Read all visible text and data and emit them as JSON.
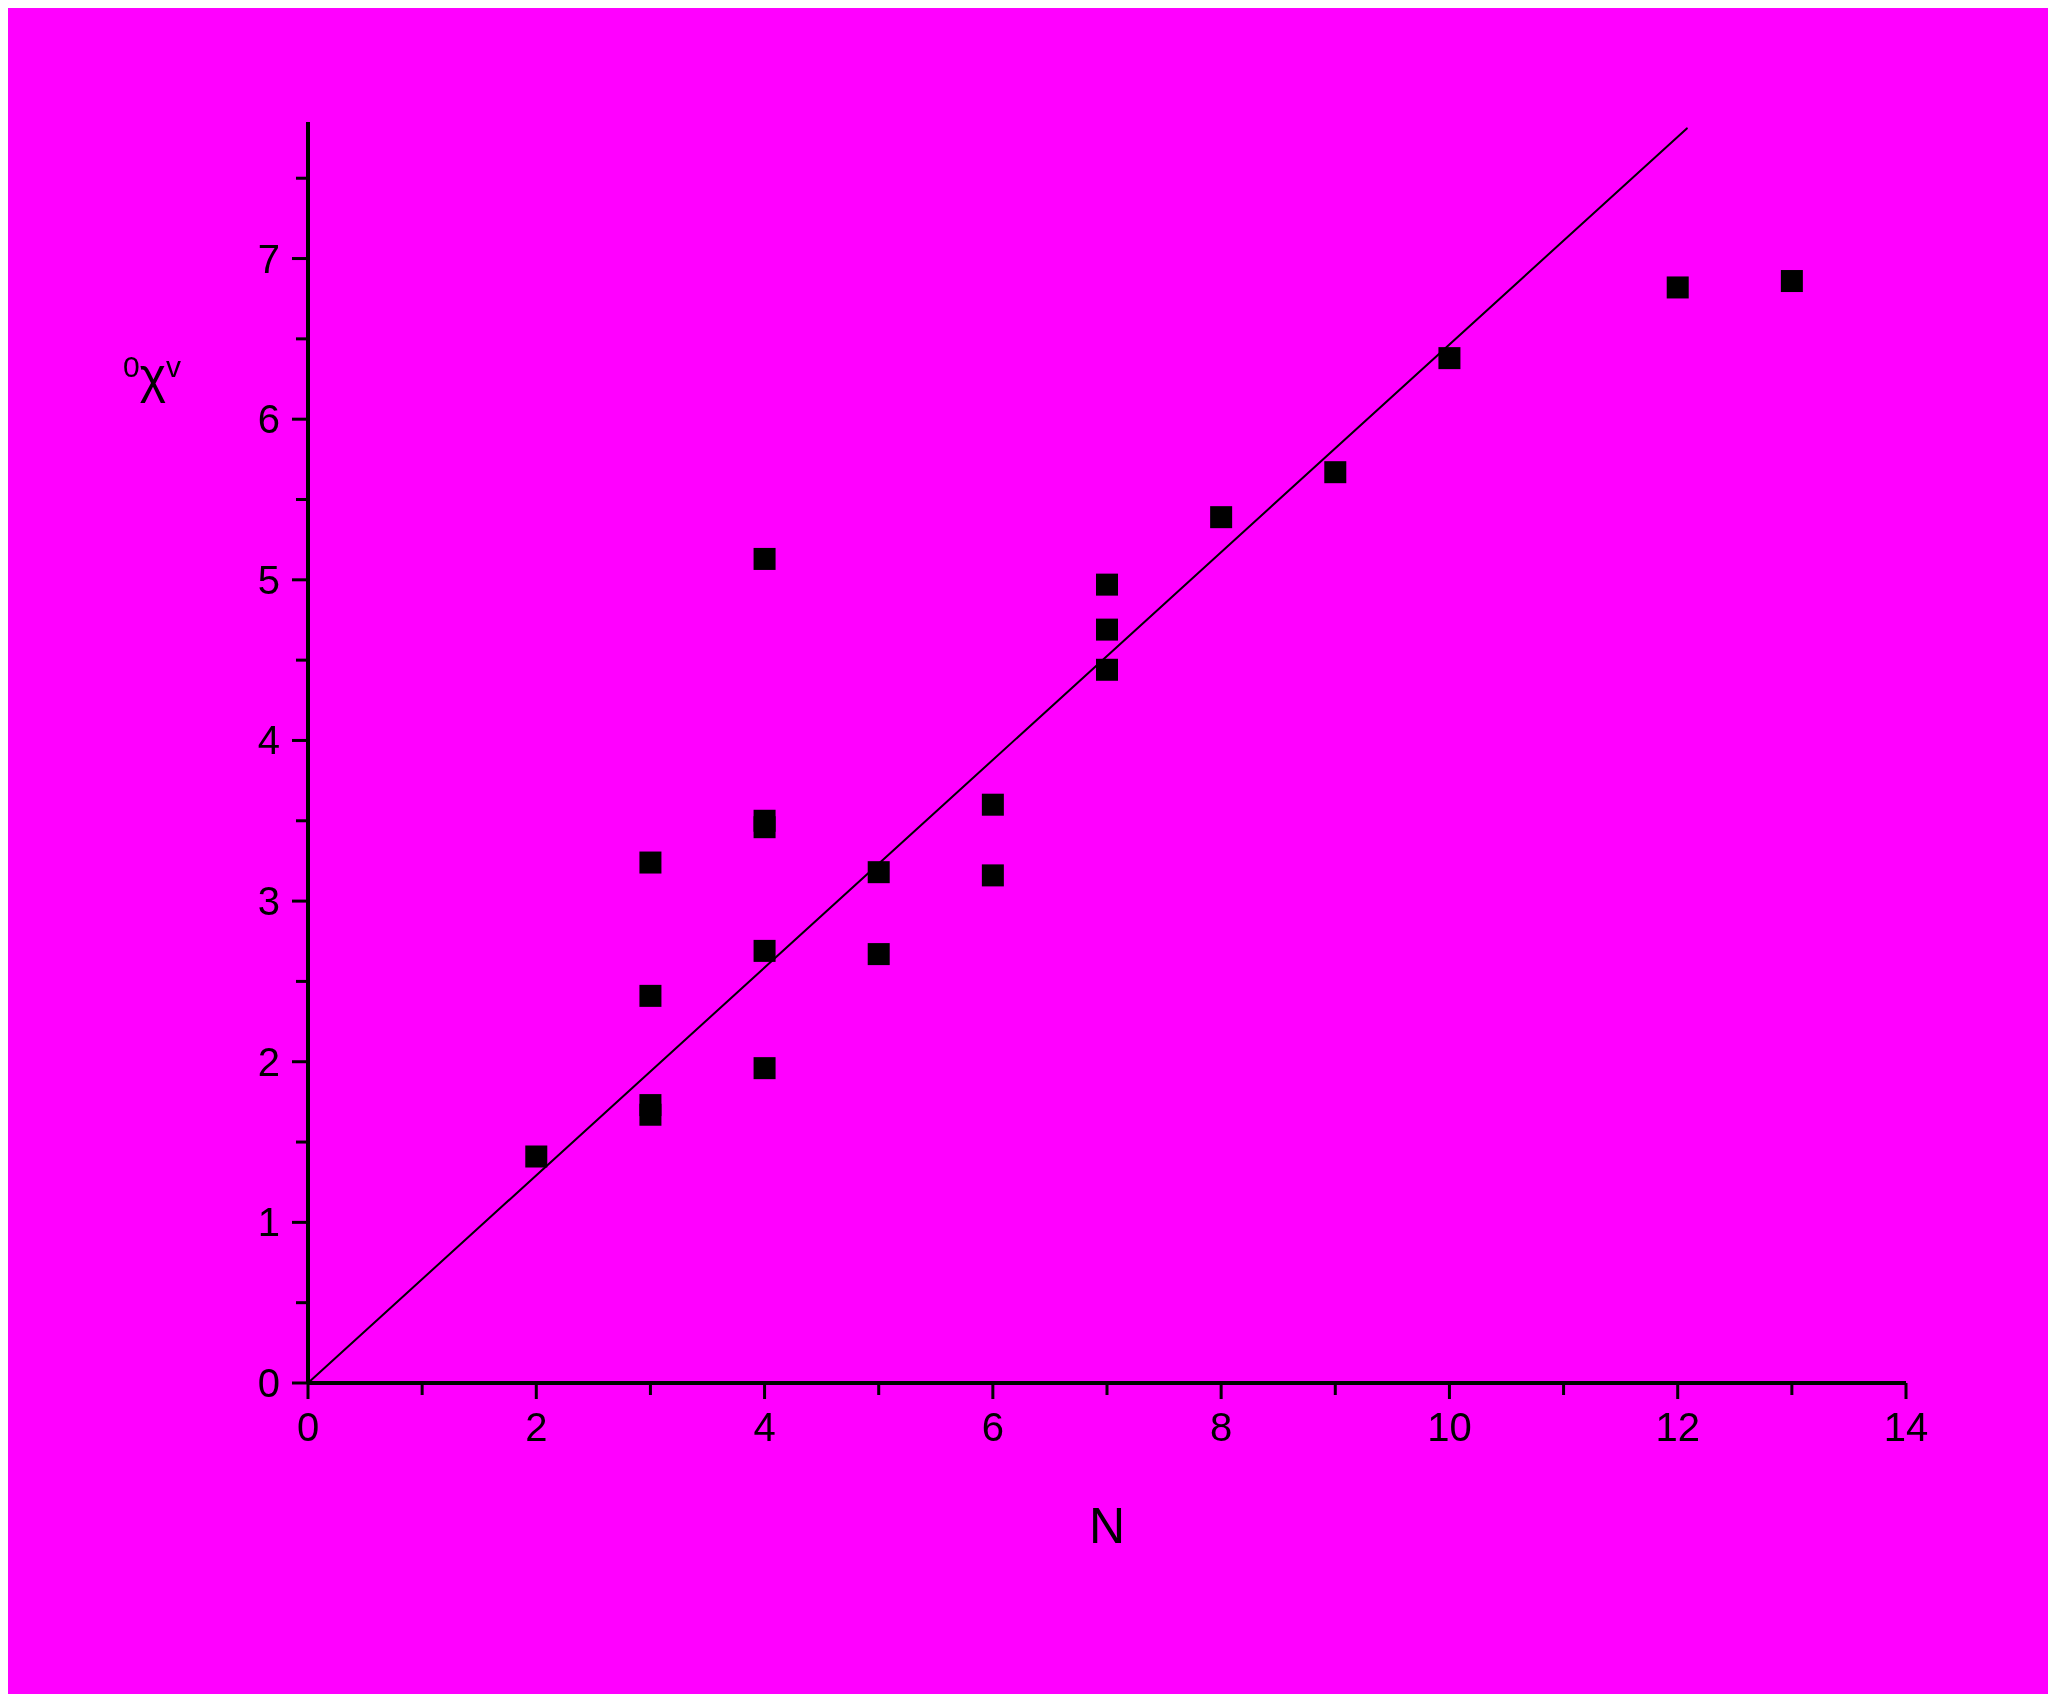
{
  "chart_data": {
    "type": "scatter",
    "xlabel": "N",
    "ylabel": "$^{0}$χ$^{v}$",
    "xlim": [
      0,
      14
    ],
    "ylim": [
      0,
      7.85
    ],
    "xticks": [
      0,
      {
        "value": 1,
        "label": null
      },
      2,
      {
        "value": 3,
        "label": null
      },
      4,
      {
        "value": 5,
        "label": null
      },
      6,
      {
        "value": 7,
        "label": null
      },
      8,
      {
        "value": 9,
        "label": null
      },
      10,
      {
        "value": 11,
        "label": null
      },
      12,
      {
        "value": 13,
        "label": null
      },
      14
    ],
    "yticks": [
      0,
      {
        "value": 0.5,
        "label": null
      },
      1,
      {
        "value": 1.5,
        "label": null
      },
      2,
      {
        "value": 2.5,
        "label": null
      },
      3,
      {
        "value": 3.5,
        "label": null
      },
      4,
      {
        "value": 4.5,
        "label": null
      },
      5,
      {
        "value": 5.5,
        "label": null
      },
      6,
      {
        "value": 6.5,
        "label": null
      },
      7,
      {
        "value": 7.5,
        "label": null
      }
    ],
    "grid": false,
    "series": [
      {
        "marker": "square",
        "color": "#000000",
        "x": [
          2,
          3,
          3,
          3,
          3,
          4,
          4,
          4,
          4,
          4,
          5,
          5,
          6,
          6,
          7,
          7,
          7,
          8,
          9,
          10,
          12,
          13
        ],
        "values": [
          1.41,
          3.24,
          2.41,
          1.73,
          1.67,
          5.13,
          3.5,
          3.46,
          2.69,
          1.96,
          3.18,
          2.67,
          3.6,
          3.16,
          4.97,
          4.69,
          4.44,
          5.39,
          5.67,
          6.38,
          6.82,
          6.86
        ]
      },
      {
        "type": "line",
        "color": "#000000",
        "line_style": "solid",
        "x": [
          0,
          12.08
        ],
        "values": [
          0,
          7.81
        ]
      }
    ]
  }
}
